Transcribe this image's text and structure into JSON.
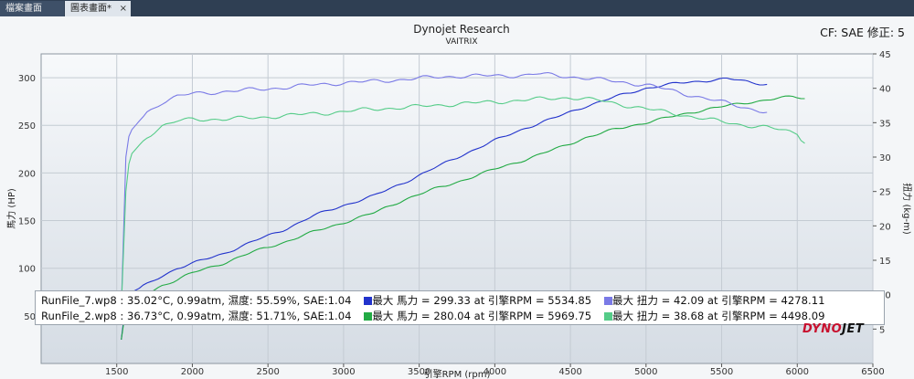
{
  "tabs": [
    {
      "label": "檔案畫面"
    },
    {
      "label": "圖表畫面*",
      "close": "×"
    }
  ],
  "header": {
    "title": "Dynojet Research",
    "subtitle": "VAITRIX",
    "cf": "CF: SAE 修正: 5"
  },
  "legend": {
    "rows": [
      {
        "file": "RunFile_7.wp8",
        "cond": ": 35.02°C, 0.99atm, 濕度: 55.59%, SAE:1.04",
        "hp": "最大 馬力 = 299.33 at 引擎RPM = 5534.85",
        "tq": "最大 扭力 = 42.09 at 引擎RPM = 4278.11"
      },
      {
        "file": "RunFile_2.wp8",
        "cond": ": 36.73°C, 0.99atm, 濕度: 51.71%, SAE:1.04",
        "hp": "最大 馬力 = 280.04 at 引擎RPM = 5969.75",
        "tq": "最大 扭力 = 38.68 at 引擎RPM = 4498.09"
      }
    ]
  },
  "logo": {
    "a": "DYNO",
    "b": "JET"
  },
  "chart_data": {
    "type": "line",
    "xlabel": "引擎RPM (rpm)",
    "ylabel": "馬力 (HP)",
    "y2label": "扭力 (kg-m)",
    "xlim": [
      1000,
      6500
    ],
    "ylim": [
      0,
      325
    ],
    "y2lim": [
      0,
      45
    ],
    "xticks": [
      1500,
      2000,
      2500,
      3000,
      3500,
      4000,
      4500,
      5000,
      5500,
      6000,
      6500
    ],
    "yticks": [
      50,
      100,
      150,
      200,
      250,
      300
    ],
    "y2ticks": [
      5,
      10,
      15,
      20,
      25,
      30,
      35,
      40,
      45
    ],
    "grid": true,
    "series": [
      {
        "name": "RunFile_7.wp8 馬力",
        "color": "#2233cc",
        "axis": "left",
        "x": [
          1530,
          1560,
          1600,
          1700,
          1800,
          1900,
          2000,
          2200,
          2400,
          2600,
          2800,
          3000,
          3200,
          3400,
          3600,
          3800,
          4000,
          4200,
          4400,
          4600,
          4800,
          5000,
          5200,
          5400,
          5535,
          5700,
          5800
        ],
        "y": [
          25,
          65,
          75,
          83,
          92,
          100,
          105,
          115,
          128,
          140,
          155,
          166,
          176,
          190,
          205,
          220,
          234,
          247,
          258,
          270,
          280,
          289,
          294,
          297,
          299,
          295,
          293
        ]
      },
      {
        "name": "RunFile_2.wp8 馬力",
        "color": "#22aa44",
        "axis": "left",
        "x": [
          1530,
          1560,
          1600,
          1700,
          1800,
          1900,
          2000,
          2200,
          2400,
          2600,
          2800,
          3000,
          3200,
          3400,
          3600,
          3800,
          4000,
          4200,
          4400,
          4600,
          4800,
          5000,
          5200,
          5400,
          5600,
          5800,
          5970,
          6050
        ],
        "y": [
          25,
          58,
          65,
          73,
          82,
          88,
          95,
          105,
          117,
          127,
          138,
          148,
          158,
          172,
          183,
          193,
          204,
          214,
          225,
          237,
          246,
          253,
          260,
          267,
          272,
          277,
          280,
          278
        ]
      },
      {
        "name": "RunFile_7.wp8 扭力",
        "color": "#7a7ae6",
        "axis": "right",
        "x": [
          1530,
          1560,
          1580,
          1600,
          1700,
          1800,
          1900,
          2000,
          2200,
          2400,
          2600,
          2800,
          3000,
          3200,
          3400,
          3600,
          3800,
          4000,
          4200,
          4278,
          4500,
          4800,
          5000,
          5200,
          5400,
          5600,
          5800
        ],
        "y": [
          8,
          30,
          33,
          34,
          36.5,
          38,
          38.8,
          39.2,
          39.5,
          39.8,
          40.1,
          40.5,
          40.8,
          41.0,
          41.3,
          41.6,
          41.8,
          41.8,
          41.9,
          42.09,
          41.7,
          41.0,
          40.5,
          39.5,
          38.5,
          37.5,
          36.5
        ]
      },
      {
        "name": "RunFile_2.wp8 扭力",
        "color": "#55cc88",
        "axis": "right",
        "x": [
          1530,
          1560,
          1580,
          1600,
          1700,
          1800,
          1900,
          2000,
          2200,
          2400,
          2600,
          2800,
          3000,
          3200,
          3400,
          3600,
          3800,
          4000,
          4200,
          4498,
          4700,
          5000,
          5200,
          5400,
          5600,
          5800,
          6000,
          6050
        ],
        "y": [
          8,
          25,
          29,
          30.5,
          33,
          34.5,
          35.2,
          35.5,
          35.5,
          35.7,
          36,
          36.3,
          36.6,
          37,
          37.2,
          37.5,
          37.8,
          38,
          38.3,
          38.68,
          38.2,
          37,
          36.3,
          35.5,
          34.8,
          34.3,
          33.5,
          32
        ]
      }
    ]
  }
}
